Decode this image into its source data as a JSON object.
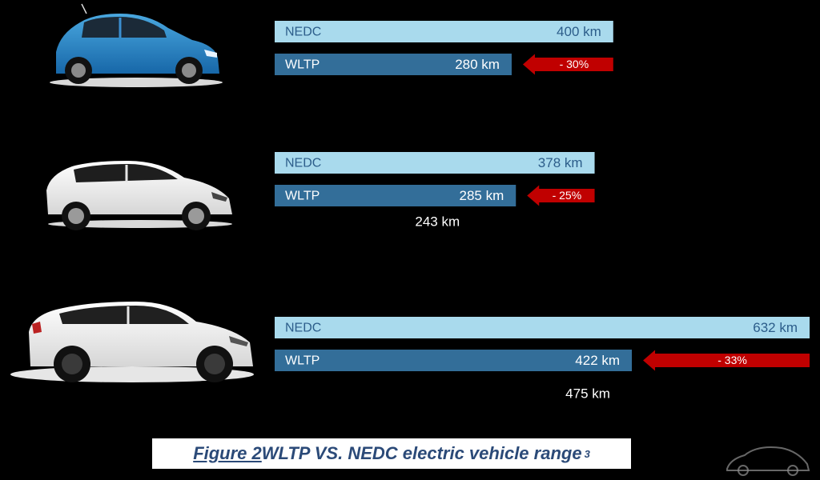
{
  "chart_data": {
    "type": "bar",
    "orientation": "horizontal",
    "groups": [
      {
        "image": "blue-compact-ev-image",
        "bars": [
          {
            "label": "NEDC",
            "value": 400,
            "value_label": "400 km"
          },
          {
            "label": "WLTP",
            "value": 280,
            "value_label": "280 km"
          }
        ],
        "reduction_label": "- 30%",
        "extra_value_label": ""
      },
      {
        "image": "white-hatchback-ev-image",
        "bars": [
          {
            "label": "NEDC",
            "value": 378,
            "value_label": "378 km"
          },
          {
            "label": "WLTP",
            "value": 285,
            "value_label": "285 km"
          }
        ],
        "reduction_label": "- 25%",
        "extra_value_label": "243 km"
      },
      {
        "image": "white-suv-ev-image",
        "bars": [
          {
            "label": "NEDC",
            "value": 632,
            "value_label": "632 km"
          },
          {
            "label": "WLTP",
            "value": 422,
            "value_label": "422 km"
          }
        ],
        "reduction_label": "- 33%",
        "extra_value_label": "475 km"
      }
    ],
    "colors": {
      "nedc": "#a9daed",
      "wltp": "#336e99",
      "nedc_text": "#2c5d8a",
      "wltp_text": "#ffffff",
      "arrow": "#c00000",
      "background": "#000000"
    },
    "legend": "none",
    "grid": false
  },
  "caption": {
    "figure_label": "Figure 2",
    "text": " WLTP VS. NEDC electric vehicle range",
    "superscript": "3"
  },
  "watermark": {
    "icon": "car-watermark-icon"
  }
}
